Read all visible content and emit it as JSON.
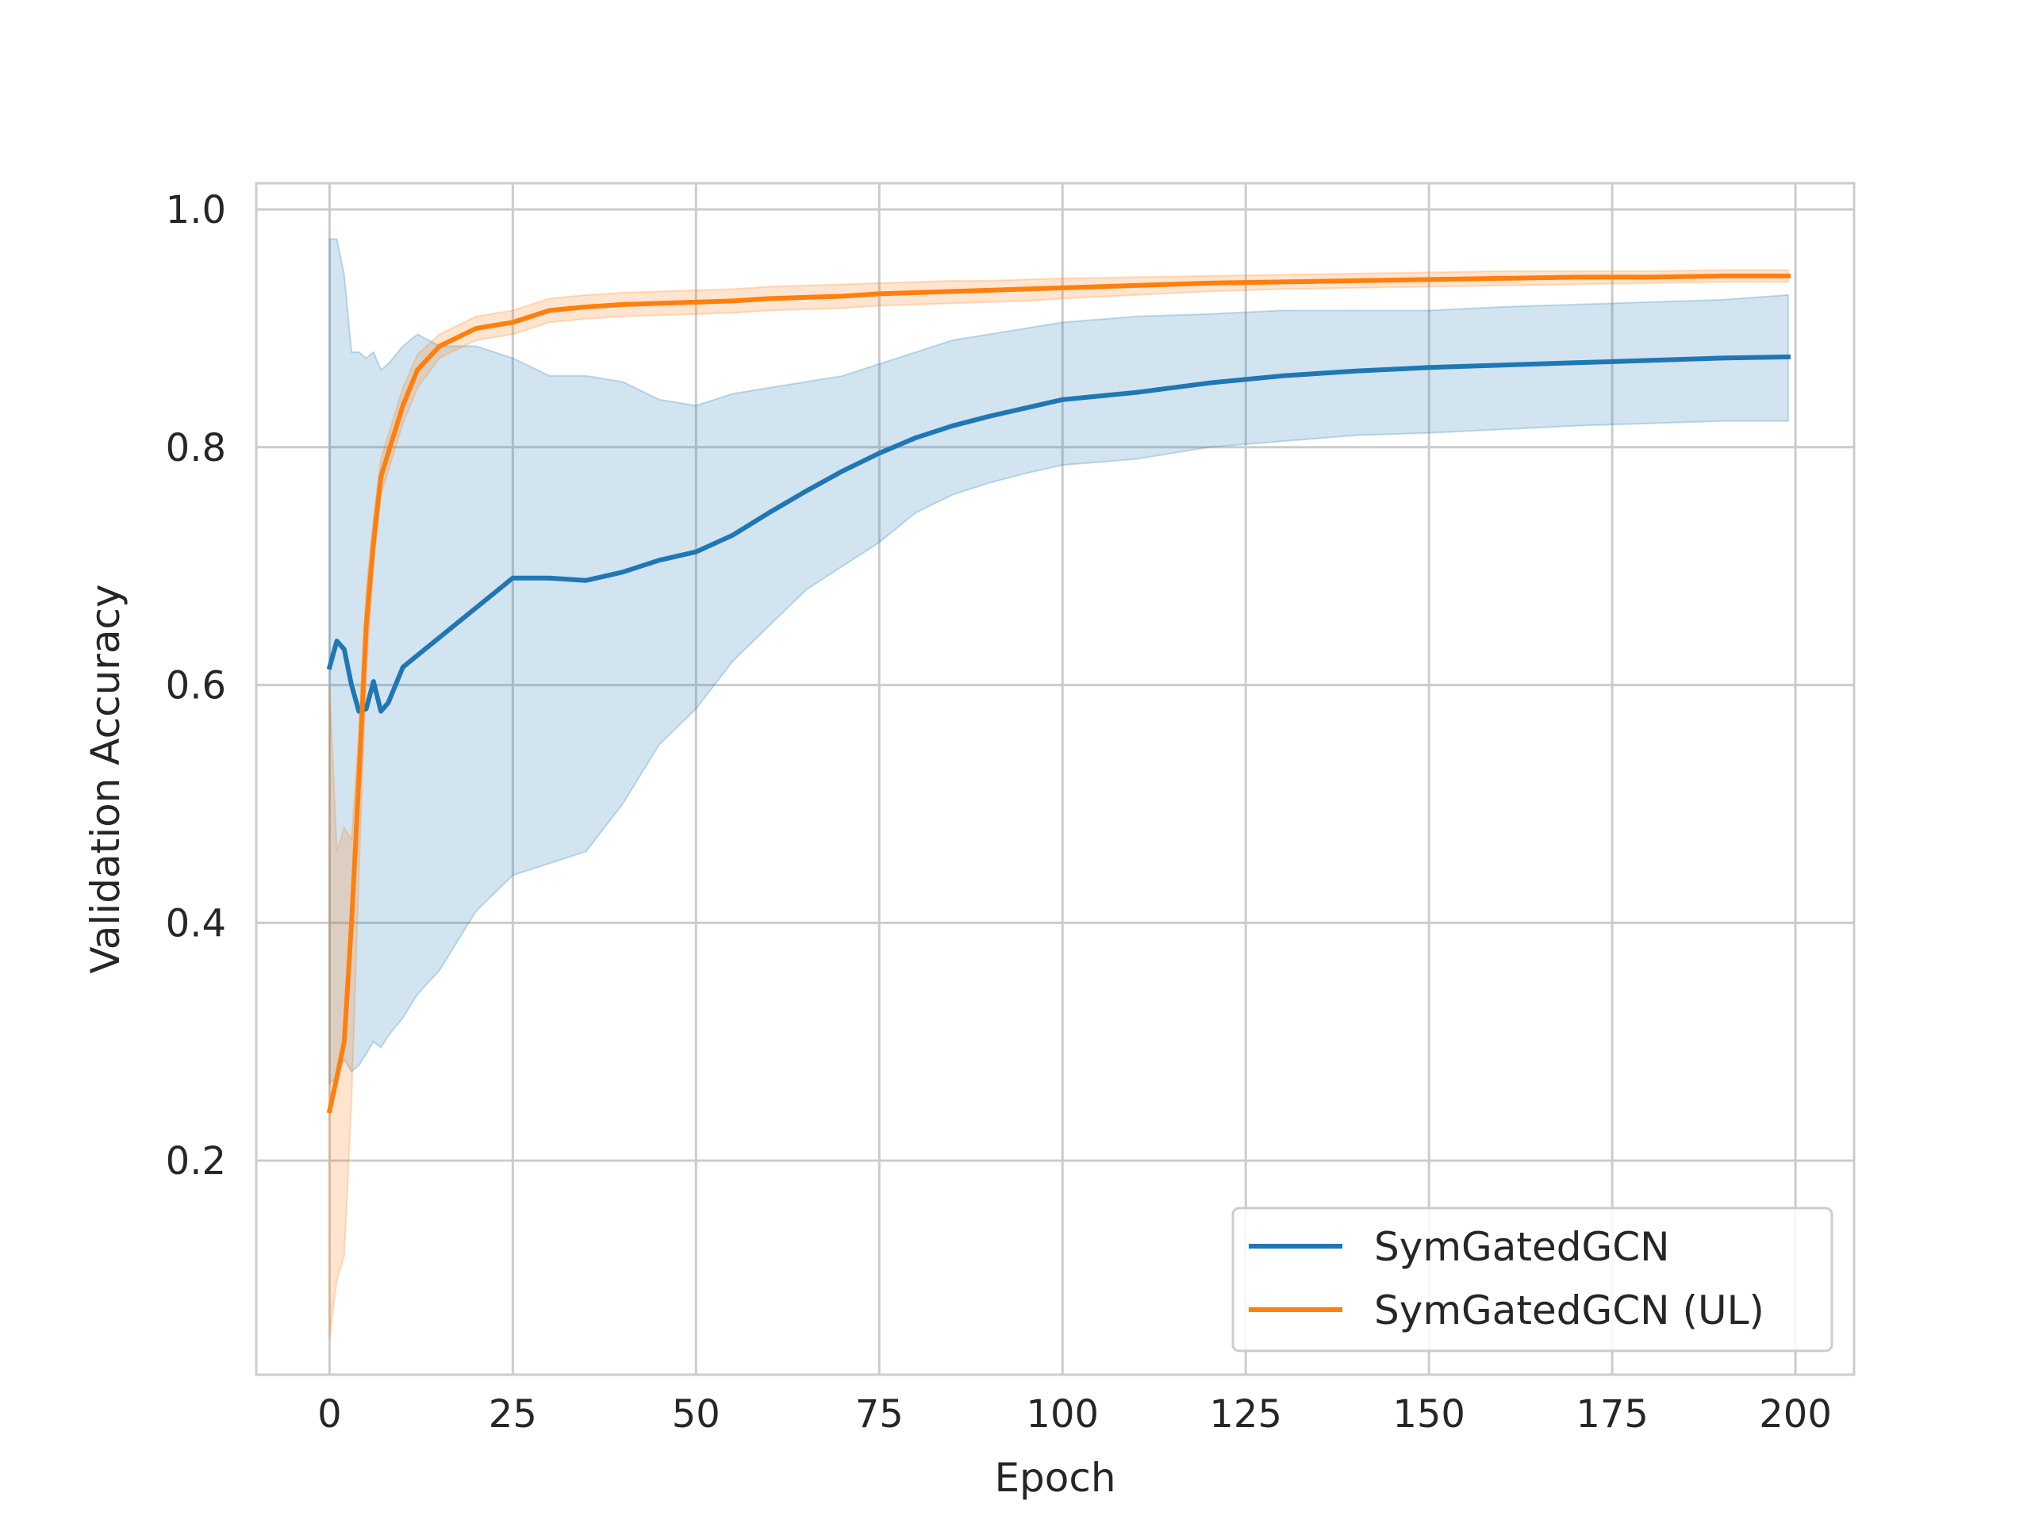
{
  "chart_data": {
    "type": "line",
    "title": "",
    "xlabel": "Epoch",
    "ylabel": "Validation Accuracy",
    "xlim": [
      -10,
      208
    ],
    "ylim": [
      0.02,
      1.022
    ],
    "xticks": [
      0,
      25,
      50,
      75,
      100,
      125,
      150,
      175,
      200
    ],
    "xtick_labels": [
      "0",
      "25",
      "50",
      "75",
      "100",
      "125",
      "150",
      "175",
      "200"
    ],
    "yticks": [
      0.2,
      0.4,
      0.6,
      0.8,
      1.0
    ],
    "ytick_labels": [
      "0.2",
      "0.4",
      "0.6",
      "0.8",
      "1.0"
    ],
    "grid": true,
    "legend_position": "lower-right",
    "series": [
      {
        "name": "SymGatedGCN",
        "color": "#1f77b4",
        "band_color": "#1f77b4",
        "x": [
          0,
          1,
          2,
          3,
          4,
          5,
          6,
          7,
          8,
          10,
          12,
          15,
          20,
          25,
          30,
          35,
          40,
          45,
          50,
          55,
          60,
          65,
          70,
          75,
          80,
          85,
          90,
          95,
          100,
          110,
          120,
          130,
          140,
          150,
          160,
          170,
          180,
          190,
          199
        ],
        "y": [
          0.615,
          0.637,
          0.63,
          0.6,
          0.578,
          0.58,
          0.603,
          0.578,
          0.585,
          0.615,
          0.625,
          0.64,
          0.665,
          0.69,
          0.69,
          0.688,
          0.695,
          0.705,
          0.712,
          0.726,
          0.745,
          0.763,
          0.78,
          0.795,
          0.808,
          0.818,
          0.826,
          0.833,
          0.84,
          0.846,
          0.854,
          0.86,
          0.864,
          0.867,
          0.869,
          0.871,
          0.873,
          0.875,
          0.876
        ],
        "upper": [
          0.975,
          0.975,
          0.945,
          0.88,
          0.88,
          0.875,
          0.88,
          0.865,
          0.87,
          0.885,
          0.895,
          0.885,
          0.885,
          0.875,
          0.86,
          0.86,
          0.855,
          0.84,
          0.835,
          0.845,
          0.85,
          0.855,
          0.86,
          0.87,
          0.88,
          0.89,
          0.895,
          0.9,
          0.905,
          0.91,
          0.912,
          0.915,
          0.915,
          0.915,
          0.918,
          0.92,
          0.922,
          0.924,
          0.928
        ],
        "lower": [
          0.265,
          0.27,
          0.285,
          0.275,
          0.28,
          0.29,
          0.3,
          0.295,
          0.305,
          0.32,
          0.34,
          0.36,
          0.41,
          0.44,
          0.45,
          0.46,
          0.5,
          0.55,
          0.58,
          0.62,
          0.65,
          0.68,
          0.7,
          0.72,
          0.745,
          0.76,
          0.77,
          0.778,
          0.785,
          0.79,
          0.8,
          0.805,
          0.81,
          0.812,
          0.815,
          0.818,
          0.82,
          0.822,
          0.822
        ]
      },
      {
        "name": "SymGatedGCN (UL)",
        "color": "#ff7f0e",
        "band_color": "#ff7f0e",
        "x": [
          0,
          1,
          2,
          3,
          4,
          5,
          6,
          7,
          8,
          10,
          12,
          15,
          20,
          25,
          30,
          35,
          40,
          45,
          50,
          55,
          60,
          65,
          70,
          75,
          80,
          85,
          90,
          95,
          100,
          110,
          120,
          130,
          140,
          150,
          160,
          170,
          180,
          190,
          199
        ],
        "y": [
          0.242,
          0.27,
          0.3,
          0.4,
          0.52,
          0.65,
          0.72,
          0.775,
          0.795,
          0.835,
          0.865,
          0.885,
          0.9,
          0.905,
          0.915,
          0.918,
          0.92,
          0.921,
          0.922,
          0.923,
          0.925,
          0.926,
          0.927,
          0.929,
          0.93,
          0.931,
          0.932,
          0.933,
          0.934,
          0.936,
          0.938,
          0.939,
          0.94,
          0.941,
          0.942,
          0.943,
          0.943,
          0.944,
          0.944
        ],
        "upper": [
          0.6,
          0.46,
          0.48,
          0.47,
          0.56,
          0.68,
          0.74,
          0.79,
          0.81,
          0.85,
          0.878,
          0.895,
          0.91,
          0.915,
          0.925,
          0.928,
          0.93,
          0.931,
          0.932,
          0.933,
          0.935,
          0.936,
          0.937,
          0.938,
          0.939,
          0.94,
          0.94,
          0.941,
          0.942,
          0.943,
          0.944,
          0.945,
          0.946,
          0.947,
          0.948,
          0.948,
          0.948,
          0.949,
          0.949
        ],
        "lower": [
          0.05,
          0.1,
          0.12,
          0.25,
          0.44,
          0.61,
          0.7,
          0.76,
          0.78,
          0.82,
          0.85,
          0.875,
          0.89,
          0.895,
          0.905,
          0.908,
          0.91,
          0.911,
          0.912,
          0.913,
          0.915,
          0.916,
          0.917,
          0.919,
          0.92,
          0.921,
          0.922,
          0.923,
          0.925,
          0.928,
          0.931,
          0.933,
          0.934,
          0.935,
          0.936,
          0.937,
          0.938,
          0.939,
          0.939
        ]
      }
    ]
  }
}
